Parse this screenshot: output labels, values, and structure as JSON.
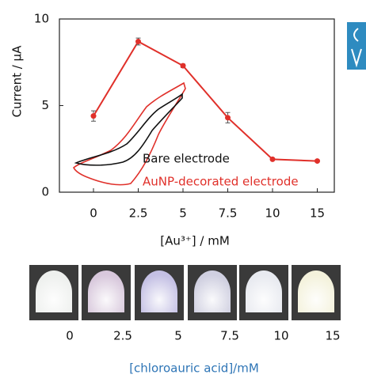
{
  "chart_data": {
    "type": "line",
    "y_label": "Current / μA",
    "x_label": "[Au³⁺] / mM",
    "categories": [
      "0",
      "2.5",
      "5",
      "7.5",
      "10",
      "15"
    ],
    "values": [
      4.4,
      8.7,
      7.3,
      4.3,
      1.9,
      1.8
    ],
    "errors": [
      0.3,
      0.2,
      0.1,
      0.3,
      0.05,
      0.05
    ],
    "color": "#e0302a",
    "ylim": [
      0,
      10
    ],
    "yticks": [
      0,
      5,
      10
    ],
    "inset_legend": [
      {
        "text": "Bare electrode",
        "color": "#111111"
      },
      {
        "text": "AuNP-decorated electrode",
        "color": "#e0302a"
      }
    ]
  },
  "photos": {
    "labels": [
      "0",
      "2.5",
      "5",
      "7.5",
      "10",
      "15"
    ],
    "tints": [
      "#eef0ee",
      "#d8c8dc",
      "#c4c0e4",
      "#cfcfe0",
      "#e8eaf0",
      "#f4f2dc"
    ],
    "caption": "[chloroauric acid]/mM",
    "caption_color": "#2e75b6"
  }
}
